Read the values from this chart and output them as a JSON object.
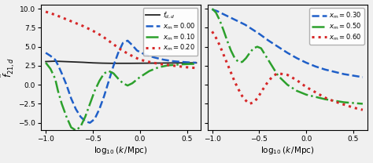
{
  "left_panel": {
    "ylabel": "$\\hat{f}_{21,d}$",
    "xlabel": "$\\log_{10}(k\\,/\\mathrm{Mpc})$",
    "ylim": [
      -6,
      10.5
    ],
    "xlim": [
      -1.05,
      0.65
    ],
    "yticks": [
      -5.0,
      -2.5,
      0.0,
      2.5,
      5.0,
      7.5,
      10.0
    ],
    "xticks": [
      -1.0,
      -0.5,
      0.0,
      0.5
    ],
    "curves": [
      {
        "label": "$f_{d,d}$",
        "color": "#222222",
        "linestyle": "solid",
        "linewidth": 1.3,
        "x": [
          -1.0,
          -0.9,
          -0.8,
          -0.7,
          -0.6,
          -0.5,
          -0.4,
          -0.3,
          -0.2,
          -0.1,
          0.0,
          0.1,
          0.2,
          0.3,
          0.4,
          0.5,
          0.6
        ],
        "y": [
          3.05,
          3.1,
          3.05,
          3.0,
          2.95,
          2.88,
          2.84,
          2.82,
          2.82,
          2.82,
          2.83,
          2.84,
          2.85,
          2.86,
          2.87,
          2.88,
          2.88
        ]
      },
      {
        "label": "$x_{\\rm m}=0.00$",
        "color": "#1f5fc8",
        "linestyle": "dashed",
        "linewidth": 1.8,
        "x": [
          -1.0,
          -0.95,
          -0.9,
          -0.87,
          -0.83,
          -0.78,
          -0.73,
          -0.68,
          -0.63,
          -0.58,
          -0.53,
          -0.48,
          -0.43,
          -0.38,
          -0.33,
          -0.28,
          -0.23,
          -0.18,
          -0.13,
          -0.08,
          -0.03,
          0.05,
          0.15,
          0.25,
          0.35,
          0.45,
          0.55,
          0.6
        ],
        "y": [
          4.2,
          3.8,
          3.3,
          2.6,
          1.5,
          0.0,
          -1.8,
          -3.2,
          -4.2,
          -4.8,
          -5.0,
          -4.5,
          -3.2,
          -1.5,
          0.5,
          2.5,
          4.2,
          5.5,
          5.8,
          5.2,
          4.5,
          4.0,
          3.6,
          3.3,
          3.1,
          3.0,
          2.92,
          2.9
        ]
      },
      {
        "label": "$x_{\\rm m}=0.10$",
        "color": "#2ca02c",
        "linestyle": "dashdot",
        "linewidth": 1.8,
        "x": [
          -1.0,
          -0.95,
          -0.9,
          -0.87,
          -0.83,
          -0.78,
          -0.73,
          -0.68,
          -0.63,
          -0.58,
          -0.53,
          -0.48,
          -0.43,
          -0.38,
          -0.33,
          -0.28,
          -0.23,
          -0.18,
          -0.13,
          -0.08,
          0.0,
          0.1,
          0.2,
          0.3,
          0.4,
          0.5,
          0.6
        ],
        "y": [
          2.9,
          2.1,
          0.8,
          -0.8,
          -2.5,
          -4.2,
          -5.6,
          -6.0,
          -5.5,
          -4.2,
          -2.5,
          -0.8,
          0.5,
          1.5,
          1.8,
          1.5,
          0.8,
          0.2,
          -0.1,
          0.2,
          1.0,
          1.8,
          2.3,
          2.55,
          2.65,
          2.72,
          2.75
        ]
      },
      {
        "label": "$x_{\\rm m}=0.20$",
        "color": "#d62728",
        "linestyle": "dotted",
        "linewidth": 2.2,
        "x": [
          -1.0,
          -0.9,
          -0.8,
          -0.7,
          -0.6,
          -0.5,
          -0.4,
          -0.3,
          -0.2,
          -0.1,
          0.0,
          0.1,
          0.2,
          0.3,
          0.4,
          0.5,
          0.6
        ],
        "y": [
          9.6,
          9.2,
          8.7,
          8.2,
          7.7,
          7.1,
          6.4,
          5.5,
          4.6,
          3.9,
          3.3,
          3.0,
          2.75,
          2.6,
          2.45,
          2.3,
          2.2
        ]
      }
    ]
  },
  "right_panel": {
    "xlabel": "$\\log_{10}(k\\,/\\mathrm{Mpc})$",
    "ylim": [
      -6,
      10.5
    ],
    "xlim": [
      -1.05,
      0.65
    ],
    "yticks": [
      -5.0,
      -2.5,
      0.0,
      2.5,
      5.0,
      7.5,
      10.0
    ],
    "xticks": [
      -1.0,
      -0.5,
      0.0,
      0.5
    ],
    "curves": [
      {
        "label": "$x_{\\rm m}=0.30$",
        "color": "#1f5fc8",
        "linestyle": "dashed",
        "linewidth": 1.8,
        "x": [
          -1.0,
          -0.95,
          -0.9,
          -0.85,
          -0.8,
          -0.75,
          -0.7,
          -0.65,
          -0.6,
          -0.5,
          -0.4,
          -0.3,
          -0.2,
          -0.1,
          0.0,
          0.1,
          0.2,
          0.3,
          0.4,
          0.5,
          0.6
        ],
        "y": [
          9.9,
          9.7,
          9.4,
          9.1,
          8.8,
          8.5,
          8.2,
          7.9,
          7.5,
          6.7,
          5.8,
          5.0,
          4.2,
          3.5,
          2.9,
          2.4,
          2.0,
          1.7,
          1.4,
          1.2,
          1.0
        ]
      },
      {
        "label": "$x_{\\rm m}=0.50$",
        "color": "#2ca02c",
        "linestyle": "dashdot",
        "linewidth": 1.8,
        "x": [
          -1.0,
          -0.96,
          -0.92,
          -0.88,
          -0.84,
          -0.8,
          -0.76,
          -0.72,
          -0.68,
          -0.64,
          -0.6,
          -0.56,
          -0.52,
          -0.48,
          -0.44,
          -0.4,
          -0.35,
          -0.3,
          -0.2,
          -0.1,
          0.0,
          0.1,
          0.2,
          0.3,
          0.4,
          0.5,
          0.6
        ],
        "y": [
          10.0,
          9.5,
          8.5,
          7.2,
          5.8,
          4.5,
          3.5,
          3.0,
          3.0,
          3.5,
          4.2,
          4.8,
          5.0,
          4.8,
          4.0,
          3.2,
          2.2,
          1.2,
          0.0,
          -0.8,
          -1.3,
          -1.6,
          -1.9,
          -2.1,
          -2.3,
          -2.4,
          -2.5
        ]
      },
      {
        "label": "$x_{\\rm m}=0.60$",
        "color": "#d62728",
        "linestyle": "dotted",
        "linewidth": 2.2,
        "x": [
          -1.0,
          -0.96,
          -0.92,
          -0.88,
          -0.84,
          -0.8,
          -0.76,
          -0.72,
          -0.68,
          -0.64,
          -0.6,
          -0.56,
          -0.52,
          -0.48,
          -0.44,
          -0.4,
          -0.35,
          -0.3,
          -0.2,
          -0.1,
          0.0,
          0.1,
          0.2,
          0.3,
          0.4,
          0.5,
          0.6
        ],
        "y": [
          7.0,
          6.2,
          5.2,
          4.0,
          2.8,
          1.6,
          0.4,
          -0.6,
          -1.5,
          -2.1,
          -2.5,
          -2.3,
          -1.8,
          -1.0,
          -0.2,
          0.5,
          1.2,
          1.5,
          1.3,
          0.6,
          -0.3,
          -1.0,
          -1.7,
          -2.2,
          -2.6,
          -3.0,
          -3.3
        ]
      }
    ]
  },
  "left_legend_loc": "upper right",
  "right_legend_loc": "upper right",
  "background": "#f0f0f0"
}
